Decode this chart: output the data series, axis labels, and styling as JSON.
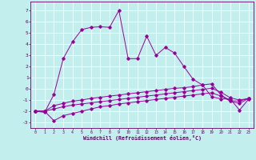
{
  "xlabel": "Windchill (Refroidissement éolien,°C)",
  "background_color": "#c2eeee",
  "grid_color": "#ffffff",
  "line_color": "#990099",
  "x_ticks": [
    0,
    1,
    2,
    3,
    4,
    5,
    6,
    7,
    8,
    9,
    10,
    11,
    12,
    13,
    14,
    15,
    16,
    17,
    18,
    19,
    20,
    21,
    22,
    23
  ],
  "y_ticks": [
    -3,
    -2,
    -1,
    0,
    1,
    2,
    3,
    4,
    5,
    6,
    7
  ],
  "ylim": [
    -3.5,
    7.8
  ],
  "xlim": [
    -0.5,
    23.5
  ],
  "series1_x": [
    0,
    1,
    2,
    3,
    4,
    5,
    6,
    7,
    8,
    9,
    10,
    11,
    12,
    13,
    14,
    15,
    16,
    17,
    18,
    19,
    20,
    21,
    22,
    23
  ],
  "series1_y": [
    -2.0,
    -2.1,
    -0.5,
    2.7,
    4.2,
    5.3,
    5.5,
    5.55,
    5.5,
    7.0,
    2.7,
    2.7,
    4.7,
    3.0,
    3.7,
    3.2,
    2.0,
    0.85,
    0.35,
    -0.7,
    -0.9,
    -0.9,
    -1.9,
    -0.9
  ],
  "series2_x": [
    0,
    1,
    2,
    3,
    4,
    5,
    6,
    7,
    8,
    9,
    10,
    11,
    12,
    13,
    14,
    15,
    16,
    17,
    18,
    19,
    20,
    21,
    22,
    23
  ],
  "series2_y": [
    -2.0,
    -2.0,
    -1.5,
    -1.3,
    -1.1,
    -1.0,
    -0.85,
    -0.75,
    -0.65,
    -0.55,
    -0.45,
    -0.35,
    -0.25,
    -0.15,
    -0.05,
    0.05,
    0.1,
    0.2,
    0.35,
    0.45,
    -0.55,
    -1.05,
    -1.1,
    -0.85
  ],
  "series3_x": [
    0,
    1,
    2,
    3,
    4,
    5,
    6,
    7,
    8,
    9,
    10,
    11,
    12,
    13,
    14,
    15,
    16,
    17,
    18,
    19,
    20,
    21,
    22,
    23
  ],
  "series3_y": [
    -2.0,
    -2.0,
    -2.85,
    -2.4,
    -2.2,
    -2.0,
    -1.8,
    -1.6,
    -1.5,
    -1.35,
    -1.25,
    -1.15,
    -1.05,
    -0.95,
    -0.85,
    -0.75,
    -0.65,
    -0.55,
    -0.45,
    -0.35,
    -0.65,
    -1.1,
    -1.3,
    -0.85
  ],
  "series4_x": [
    0,
    1,
    2,
    3,
    4,
    5,
    6,
    7,
    8,
    9,
    10,
    11,
    12,
    13,
    14,
    15,
    16,
    17,
    18,
    19,
    20,
    21,
    22,
    23
  ],
  "series4_y": [
    -2.0,
    -2.0,
    -1.8,
    -1.6,
    -1.45,
    -1.35,
    -1.25,
    -1.15,
    -1.05,
    -0.95,
    -0.85,
    -0.75,
    -0.65,
    -0.55,
    -0.45,
    -0.35,
    -0.25,
    -0.15,
    -0.05,
    0.05,
    -0.3,
    -0.8,
    -1.0,
    -0.85
  ]
}
